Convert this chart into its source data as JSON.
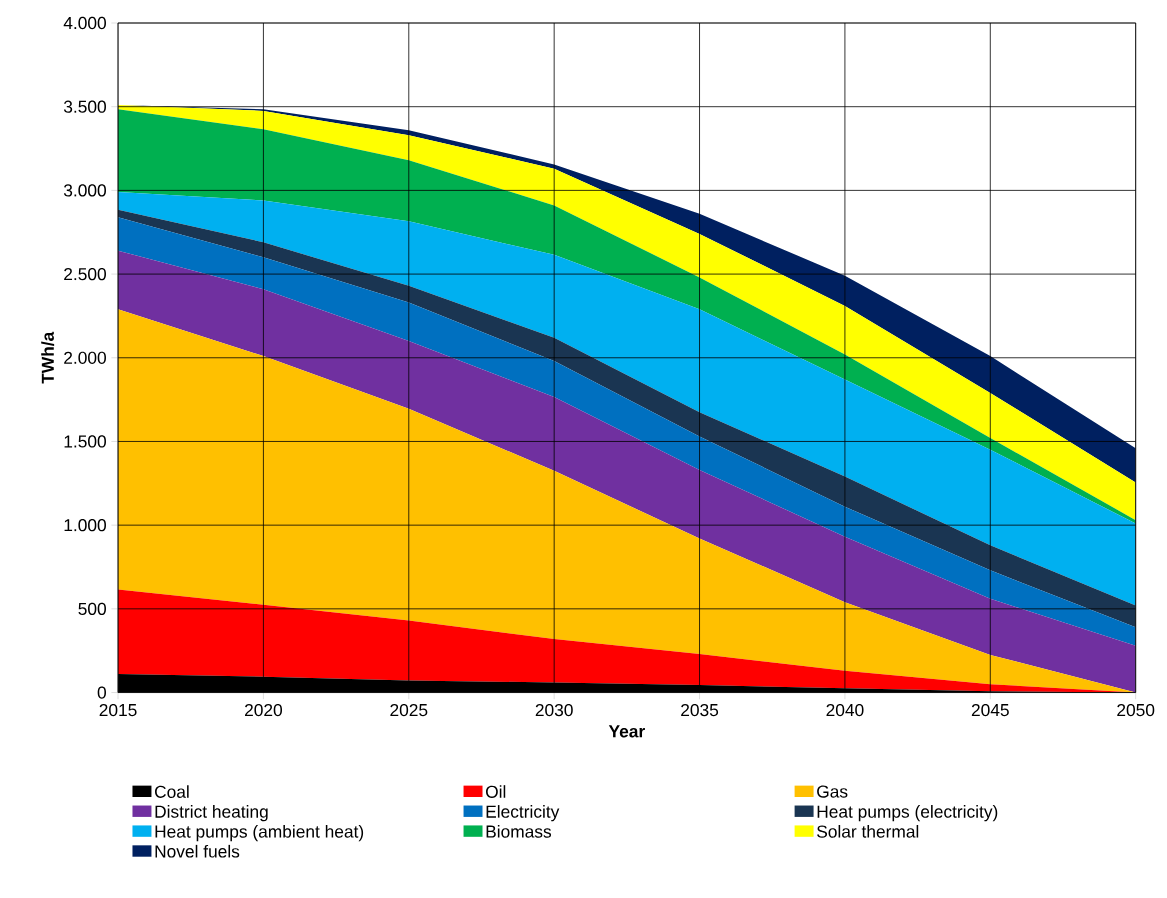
{
  "chart_data": {
    "type": "area",
    "stacked": true,
    "xlabel": "Year",
    "ylabel": "TWh/a",
    "grid": true,
    "legend": "bottom",
    "x": [
      2015,
      2020,
      2025,
      2030,
      2035,
      2040,
      2045,
      2050
    ],
    "xlim": [
      2015,
      2050
    ],
    "xticks": [
      2015,
      2020,
      2025,
      2030,
      2035,
      2040,
      2045,
      2050
    ],
    "ylim": [
      0,
      4000
    ],
    "yticks": [
      0,
      500,
      {
        "value": 1000,
        "label": "1.000"
      },
      {
        "value": 1500,
        "label": "1.500"
      },
      {
        "value": 2000,
        "label": "2.000"
      },
      {
        "value": 2500,
        "label": "2.500"
      },
      {
        "value": 3000,
        "label": "3.000"
      },
      {
        "value": 3500,
        "label": "3.500"
      },
      {
        "value": 4000,
        "label": "4.000"
      }
    ],
    "series": [
      {
        "name": "Coal",
        "color": "#000000",
        "values": [
          110,
          95,
          72,
          60,
          45,
          25,
          8,
          0
        ]
      },
      {
        "name": "Oil",
        "color": "#ff0000",
        "values": [
          505,
          430,
          358,
          260,
          185,
          105,
          42,
          0
        ]
      },
      {
        "name": "Gas",
        "color": "#ffc000",
        "values": [
          1675,
          1485,
          1265,
          1005,
          690,
          410,
          175,
          0
        ]
      },
      {
        "name": "District heating",
        "color": "#7030a0",
        "values": [
          350,
          400,
          405,
          440,
          410,
          390,
          335,
          280
        ]
      },
      {
        "name": "Electricity",
        "color": "#0070c0",
        "values": [
          200,
          190,
          230,
          215,
          200,
          180,
          170,
          110
        ]
      },
      {
        "name": "Heat pumps (electricity)",
        "color": "#1a3552",
        "values": [
          45,
          90,
          100,
          140,
          145,
          180,
          150,
          130
        ]
      },
      {
        "name": "Heat pumps (ambient heat)",
        "color": "#00b0f0",
        "values": [
          105,
          250,
          385,
          495,
          615,
          580,
          570,
          490
        ]
      },
      {
        "name": "Biomass",
        "color": "#00b050",
        "values": [
          495,
          425,
          365,
          295,
          190,
          150,
          70,
          20
        ]
      },
      {
        "name": "Solar thermal",
        "color": "#ffff00",
        "values": [
          25,
          110,
          150,
          220,
          260,
          290,
          270,
          225
        ]
      },
      {
        "name": "Novel fuels",
        "color": "#002060",
        "values": [
          0,
          10,
          30,
          25,
          120,
          180,
          220,
          205
        ]
      }
    ]
  }
}
